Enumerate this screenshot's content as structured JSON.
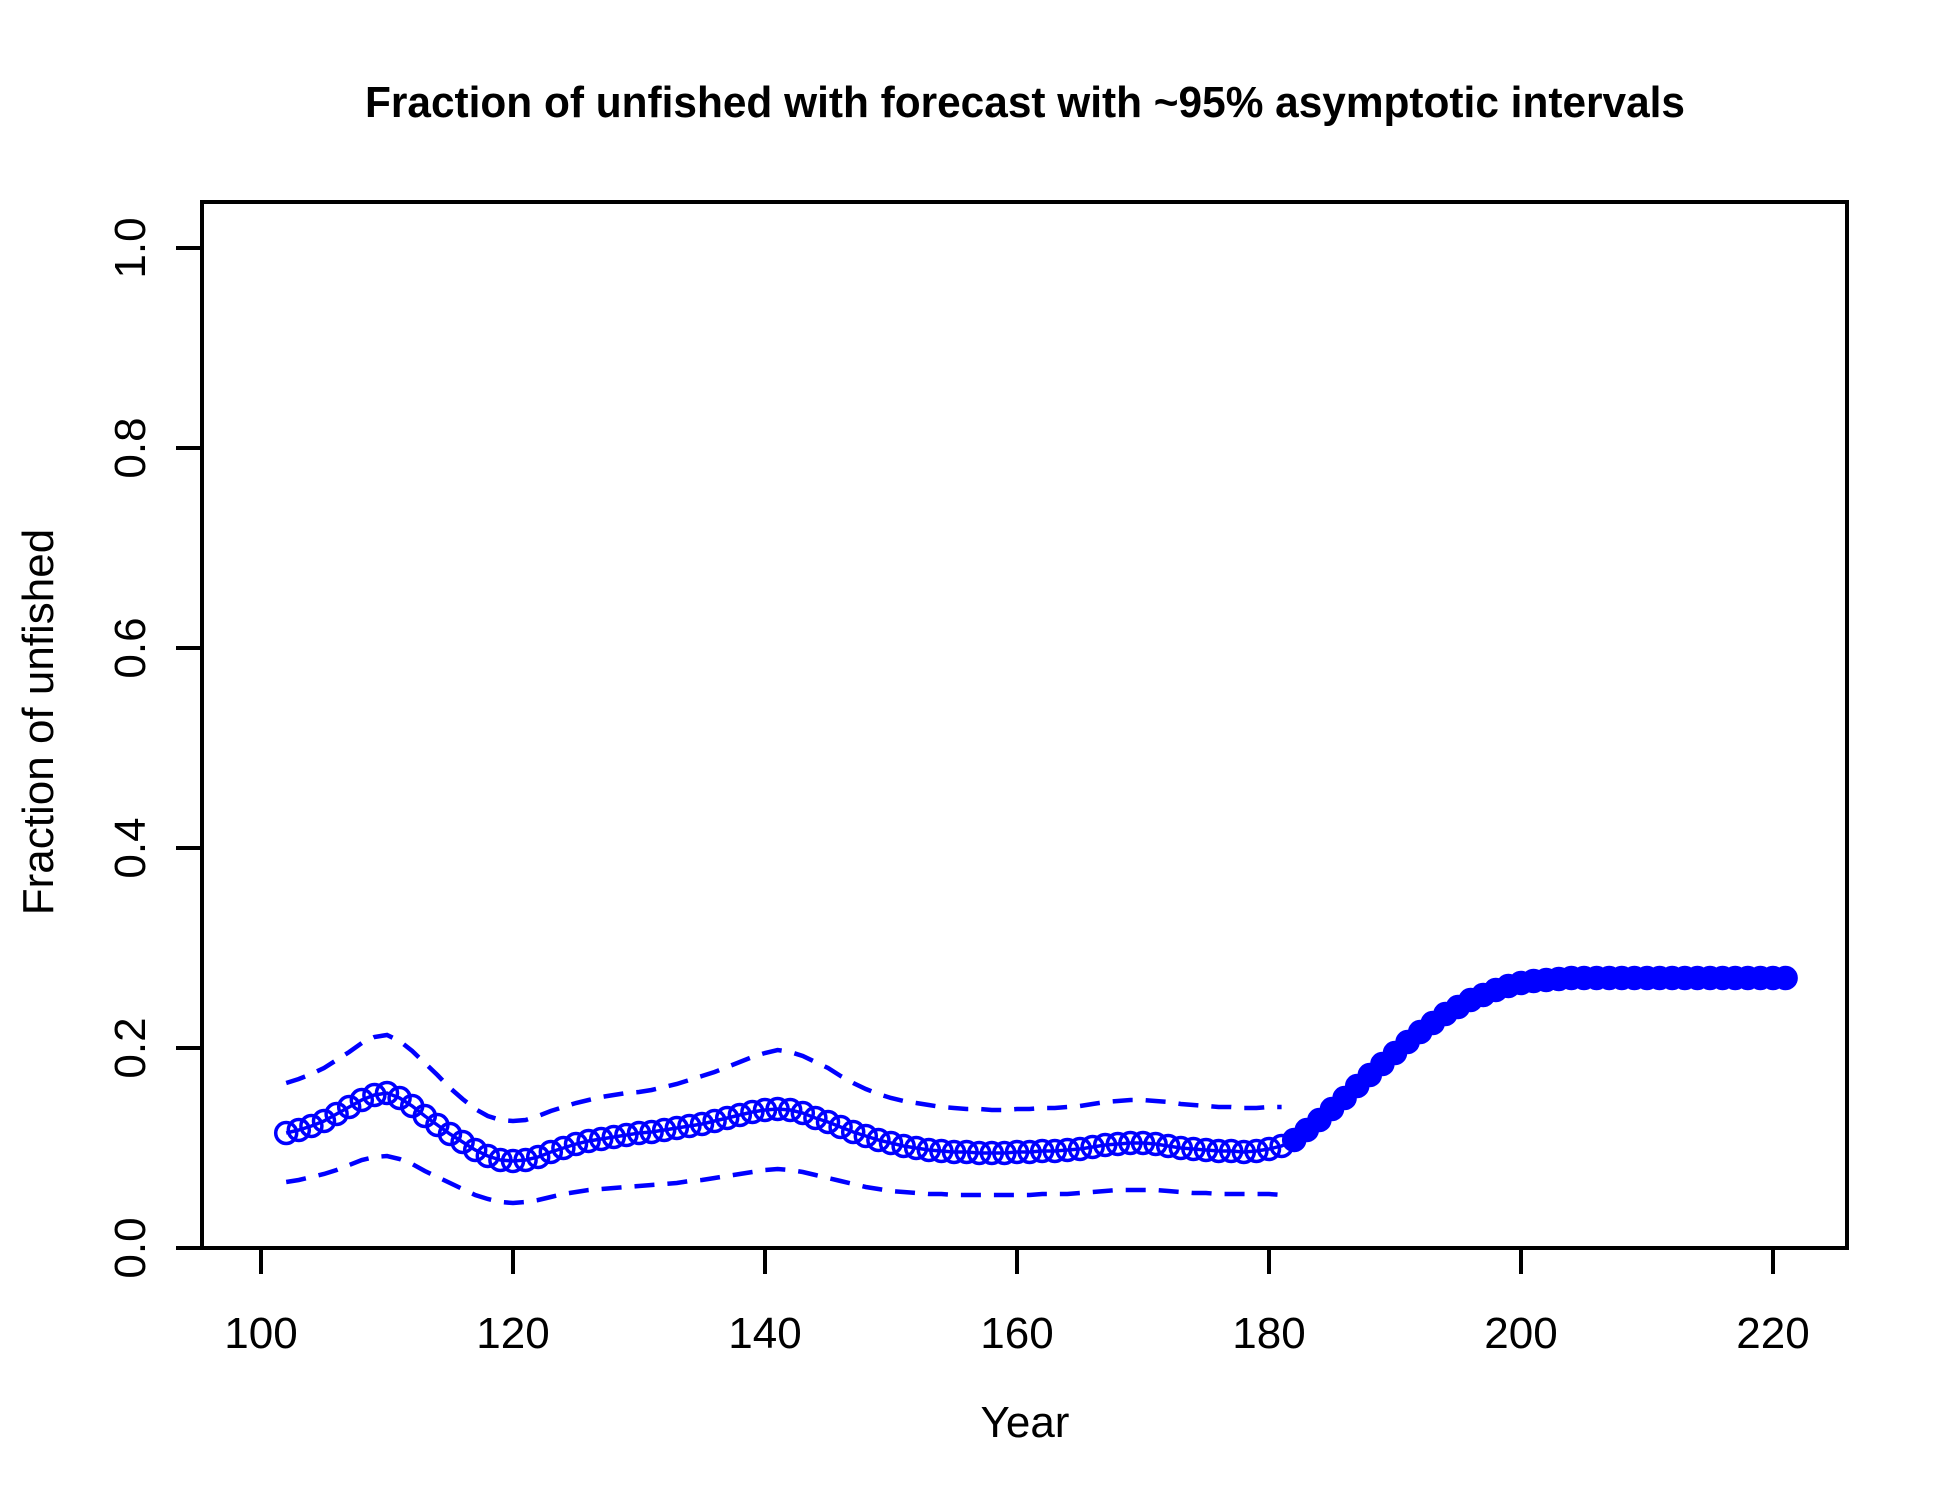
{
  "figure": {
    "background_color": "#FFFFFF",
    "frame_color": "#000000",
    "series_color": "#0000FF"
  },
  "chart_data": {
    "type": "line",
    "title": "Fraction of unfished with forecast with ~95% asymptotic intervals",
    "xlabel": "Year",
    "ylabel": "Fraction of unfished",
    "x_ticks": [
      100,
      120,
      140,
      160,
      180,
      200,
      220
    ],
    "x_tick_labels": [
      "100",
      "120",
      "140",
      "160",
      "180",
      "200",
      "220"
    ],
    "y_ticks": [
      0.0,
      0.2,
      0.4,
      0.6,
      0.8,
      1.0
    ],
    "y_tick_labels": [
      "0.0",
      "0.2",
      "0.4",
      "0.6",
      "0.8",
      "1.0"
    ],
    "xlim": [
      95.3,
      225.9
    ],
    "ylim": [
      0,
      1.046
    ],
    "grid": false,
    "legend": "none",
    "series": [
      {
        "name": "estimate",
        "marker": "open-circle",
        "line": "solid",
        "color": "#0000FF",
        "years": {
          "start": 102,
          "end": 181,
          "step": 1
        },
        "values": [
          0.115,
          0.118,
          0.122,
          0.127,
          0.134,
          0.141,
          0.148,
          0.153,
          0.155,
          0.15,
          0.142,
          0.132,
          0.123,
          0.114,
          0.106,
          0.098,
          0.092,
          0.088,
          0.087,
          0.088,
          0.091,
          0.096,
          0.1,
          0.104,
          0.107,
          0.109,
          0.111,
          0.113,
          0.115,
          0.116,
          0.118,
          0.12,
          0.122,
          0.124,
          0.127,
          0.13,
          0.133,
          0.136,
          0.138,
          0.139,
          0.138,
          0.135,
          0.13,
          0.126,
          0.121,
          0.116,
          0.112,
          0.108,
          0.105,
          0.102,
          0.1,
          0.098,
          0.097,
          0.096,
          0.096,
          0.095,
          0.095,
          0.095,
          0.096,
          0.096,
          0.097,
          0.097,
          0.098,
          0.099,
          0.101,
          0.103,
          0.104,
          0.105,
          0.105,
          0.104,
          0.102,
          0.1,
          0.099,
          0.098,
          0.097,
          0.097,
          0.096,
          0.097,
          0.099,
          0.102
        ]
      },
      {
        "name": "forecast",
        "marker": "filled-circle",
        "line": "solid",
        "color": "#0000FF",
        "years": {
          "start": 182,
          "end": 221,
          "step": 1
        },
        "values": [
          0.108,
          0.118,
          0.128,
          0.139,
          0.15,
          0.162,
          0.173,
          0.184,
          0.195,
          0.206,
          0.216,
          0.225,
          0.234,
          0.241,
          0.248,
          0.253,
          0.258,
          0.262,
          0.265,
          0.267,
          0.268,
          0.269,
          0.27,
          0.27,
          0.27,
          0.27,
          0.27,
          0.27,
          0.27,
          0.27,
          0.27,
          0.27,
          0.27,
          0.27,
          0.27,
          0.27,
          0.27,
          0.27,
          0.27,
          0.27
        ]
      },
      {
        "name": "upper_95_interval",
        "marker": "none",
        "line": "dashed",
        "color": "#0000FF",
        "years": {
          "start": 102,
          "end": 181,
          "step": 1
        },
        "values": [
          0.165,
          0.169,
          0.174,
          0.18,
          0.188,
          0.196,
          0.205,
          0.211,
          0.213,
          0.207,
          0.197,
          0.185,
          0.173,
          0.16,
          0.149,
          0.139,
          0.132,
          0.128,
          0.127,
          0.128,
          0.132,
          0.137,
          0.141,
          0.145,
          0.148,
          0.151,
          0.153,
          0.155,
          0.156,
          0.158,
          0.161,
          0.164,
          0.168,
          0.172,
          0.176,
          0.181,
          0.186,
          0.191,
          0.195,
          0.198,
          0.196,
          0.192,
          0.186,
          0.18,
          0.172,
          0.165,
          0.159,
          0.154,
          0.15,
          0.147,
          0.145,
          0.143,
          0.141,
          0.14,
          0.139,
          0.139,
          0.138,
          0.138,
          0.139,
          0.139,
          0.14,
          0.14,
          0.141,
          0.142,
          0.144,
          0.146,
          0.147,
          0.148,
          0.148,
          0.147,
          0.146,
          0.144,
          0.143,
          0.142,
          0.141,
          0.141,
          0.14,
          0.14,
          0.141,
          0.141
        ]
      },
      {
        "name": "lower_95_interval",
        "marker": "none",
        "line": "dashed",
        "color": "#0000FF",
        "years": {
          "start": 102,
          "end": 181,
          "step": 1
        },
        "values": [
          0.066,
          0.068,
          0.071,
          0.074,
          0.078,
          0.083,
          0.088,
          0.091,
          0.092,
          0.089,
          0.084,
          0.077,
          0.071,
          0.065,
          0.059,
          0.053,
          0.049,
          0.046,
          0.045,
          0.046,
          0.048,
          0.051,
          0.054,
          0.056,
          0.058,
          0.059,
          0.06,
          0.061,
          0.062,
          0.063,
          0.064,
          0.065,
          0.067,
          0.068,
          0.07,
          0.072,
          0.074,
          0.076,
          0.078,
          0.079,
          0.078,
          0.076,
          0.073,
          0.07,
          0.067,
          0.064,
          0.061,
          0.059,
          0.057,
          0.056,
          0.055,
          0.054,
          0.054,
          0.053,
          0.053,
          0.053,
          0.053,
          0.053,
          0.053,
          0.053,
          0.054,
          0.054,
          0.054,
          0.055,
          0.056,
          0.057,
          0.058,
          0.058,
          0.058,
          0.058,
          0.057,
          0.056,
          0.055,
          0.055,
          0.054,
          0.054,
          0.054,
          0.054,
          0.054,
          0.053
        ]
      }
    ]
  }
}
